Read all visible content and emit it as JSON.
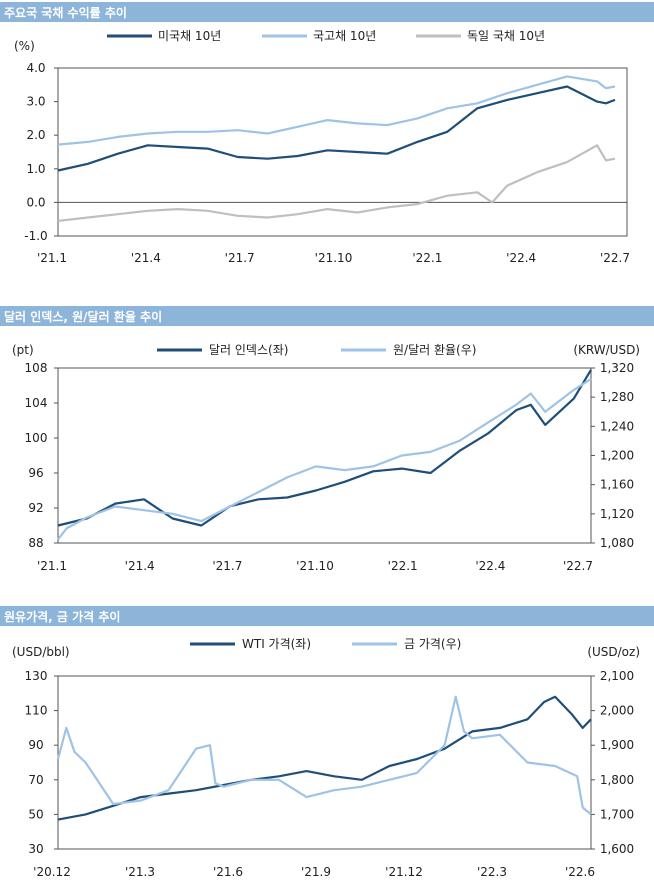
{
  "chart_data": [
    {
      "type": "line",
      "title": "주요국 국채 수익률 추이",
      "unit": "(%)",
      "x_ticks": [
        "'21.1",
        "'21.4",
        "'21.7",
        "'21.10",
        "'22.1",
        "'22.4",
        "'22.7"
      ],
      "ylim": [
        -1.0,
        4.0
      ],
      "y_ticks": [
        "4.0",
        "3.0",
        "2.0",
        "1.0",
        "0.0",
        "-1.0"
      ],
      "x_range": [
        0,
        19
      ],
      "series": [
        {
          "name": "미국채 10년",
          "color": "#1f4e79",
          "x": [
            0,
            1,
            2,
            3,
            4,
            5,
            6,
            7,
            8,
            9,
            10,
            11,
            12,
            13,
            14,
            15,
            16,
            17,
            18,
            18.3,
            18.6
          ],
          "values": [
            0.95,
            1.15,
            1.45,
            1.7,
            1.65,
            1.6,
            1.35,
            1.3,
            1.38,
            1.55,
            1.5,
            1.45,
            1.8,
            2.1,
            2.8,
            3.05,
            3.25,
            3.45,
            3.0,
            2.95,
            3.05
          ]
        },
        {
          "name": "국고채 10년",
          "color": "#9ec3e6",
          "x": [
            0,
            1,
            2,
            3,
            4,
            5,
            6,
            7,
            8,
            9,
            10,
            11,
            12,
            13,
            14,
            15,
            16,
            17,
            18,
            18.3,
            18.6
          ],
          "values": [
            1.72,
            1.8,
            1.95,
            2.05,
            2.1,
            2.1,
            2.15,
            2.05,
            2.25,
            2.45,
            2.35,
            2.3,
            2.5,
            2.8,
            2.95,
            3.25,
            3.5,
            3.75,
            3.6,
            3.4,
            3.45
          ]
        },
        {
          "name": "독일 국채 10년",
          "color": "#bfbfbf",
          "x": [
            0,
            1,
            2,
            3,
            4,
            5,
            6,
            7,
            8,
            9,
            10,
            11,
            12,
            13,
            14,
            14.5,
            15,
            16,
            17,
            18,
            18.3,
            18.6
          ],
          "values": [
            -0.55,
            -0.45,
            -0.35,
            -0.25,
            -0.2,
            -0.25,
            -0.4,
            -0.45,
            -0.35,
            -0.2,
            -0.3,
            -0.15,
            -0.05,
            0.2,
            0.3,
            0.0,
            0.5,
            0.9,
            1.2,
            1.7,
            1.25,
            1.3
          ]
        }
      ]
    },
    {
      "type": "line",
      "title": "달러 인덱스, 원/달러 환율 추이",
      "unit_left": "(pt)",
      "unit_right": "(KRW/USD)",
      "x_ticks": [
        "'21.1",
        "'21.4",
        "'21.7",
        "'21.10",
        "'22.1",
        "'22.4",
        "'22.7"
      ],
      "ylim_left": [
        88,
        108
      ],
      "y_ticks_left": [
        "108",
        "104",
        "100",
        "96",
        "92",
        "88"
      ],
      "ylim_right": [
        1080,
        1320
      ],
      "y_ticks_right": [
        "1,320",
        "1,280",
        "1,240",
        "1,200",
        "1,160",
        "1,120",
        "1,080"
      ],
      "x_range": [
        0,
        18.6
      ],
      "series": [
        {
          "name": "달러 인덱스(좌)",
          "axis": "left",
          "color": "#1f4e79",
          "x": [
            0,
            1,
            2,
            3,
            4,
            5,
            6,
            7,
            8,
            9,
            10,
            11,
            12,
            13,
            14,
            15,
            16,
            16.5,
            17,
            18,
            18.6
          ],
          "values": [
            90.0,
            90.8,
            92.5,
            93.0,
            90.8,
            90.0,
            92.2,
            93.0,
            93.2,
            94.0,
            95.0,
            96.2,
            96.5,
            96.0,
            98.5,
            100.5,
            103.2,
            103.8,
            101.5,
            104.5,
            107.8
          ]
        },
        {
          "name": "원/달러 환율(우)",
          "axis": "right",
          "color": "#9ec3e6",
          "x": [
            0,
            0.3,
            1,
            2,
            3,
            4,
            5,
            6,
            7,
            8,
            9,
            10,
            11,
            12,
            13,
            14,
            15,
            16,
            16.5,
            17,
            18,
            18.6
          ],
          "values": [
            1085,
            1100,
            1115,
            1130,
            1125,
            1120,
            1110,
            1130,
            1150,
            1170,
            1185,
            1180,
            1185,
            1200,
            1205,
            1220,
            1245,
            1270,
            1285,
            1260,
            1290,
            1305
          ]
        }
      ]
    },
    {
      "type": "line",
      "title": "원유가격, 금 가격 추이",
      "unit_left": "(USD/bbl)",
      "unit_right": "(USD/oz)",
      "x_ticks": [
        "'20.12",
        "'21.3",
        "'21.6",
        "'21.9",
        "'21.12",
        "'22.3",
        "'22.6"
      ],
      "ylim_left": [
        30,
        130
      ],
      "y_ticks_left": [
        "130",
        "110",
        "90",
        "70",
        "50",
        "30"
      ],
      "ylim_right": [
        1600,
        2100
      ],
      "y_ticks_right": [
        "2,100",
        "2,000",
        "1,900",
        "1,800",
        "1,700",
        "1,600"
      ],
      "x_range": [
        0,
        19.3
      ],
      "series": [
        {
          "name": "WTI 가격(좌)",
          "axis": "left",
          "color": "#1f4e79",
          "x": [
            0,
            1,
            2,
            3,
            4,
            5,
            6,
            7,
            8,
            9,
            10,
            11,
            12,
            13,
            14,
            15,
            16,
            17,
            17.6,
            18,
            18.6,
            19,
            19.3
          ],
          "values": [
            47,
            50,
            55,
            60,
            62,
            64,
            67,
            70,
            72,
            75,
            72,
            70,
            78,
            82,
            88,
            98,
            100,
            105,
            115,
            118,
            108,
            100,
            105
          ]
        },
        {
          "name": "금 가격(우)",
          "axis": "right",
          "color": "#9ec3e6",
          "x": [
            0,
            0.3,
            0.6,
            1,
            2,
            3,
            4,
            5,
            5.5,
            5.7,
            6,
            7,
            8,
            9,
            10,
            11,
            12,
            13,
            14,
            14.4,
            14.7,
            15,
            16,
            17,
            18,
            18.8,
            19,
            19.3
          ],
          "values": [
            1860,
            1950,
            1880,
            1850,
            1730,
            1740,
            1770,
            1890,
            1900,
            1790,
            1780,
            1800,
            1800,
            1750,
            1770,
            1780,
            1800,
            1820,
            1900,
            2040,
            1940,
            1920,
            1930,
            1850,
            1840,
            1810,
            1720,
            1700
          ]
        }
      ]
    }
  ]
}
